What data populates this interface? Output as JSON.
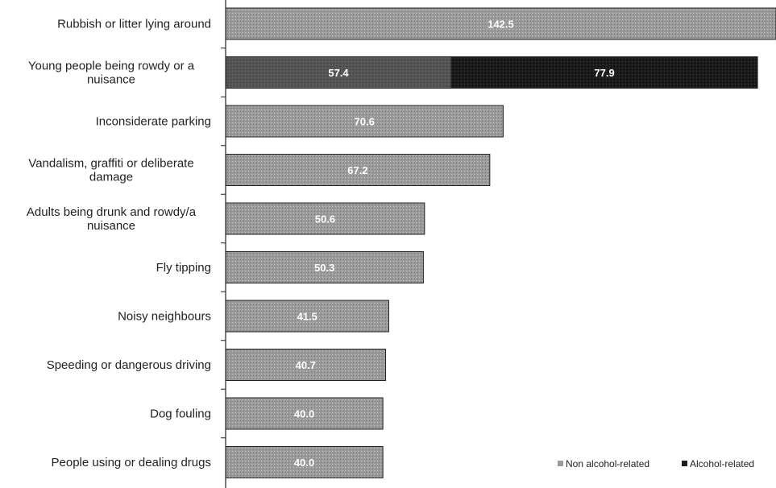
{
  "chart_data": {
    "type": "bar",
    "orientation": "horizontal",
    "stacked": true,
    "categories": [
      "Rubbish or litter lying around",
      "Young people being rowdy or a nuisance",
      "Inconsiderate parking",
      "Vandalism, graffiti or deliberate damage",
      "Adults being drunk and rowdy/a nuisance",
      "Fly tipping",
      "Noisy neighbours",
      "Speeding or dangerous driving",
      "Dog fouling",
      "People using or dealing drugs"
    ],
    "category_lines": [
      [
        "Rubbish or litter lying around"
      ],
      [
        "Young people being rowdy or a",
        "nuisance"
      ],
      [
        "Inconsiderate parking"
      ],
      [
        "Vandalism, graffiti or deliberate",
        "damage"
      ],
      [
        "Adults being drunk and rowdy/a",
        "nuisance"
      ],
      [
        "Fly tipping"
      ],
      [
        "Noisy neighbours"
      ],
      [
        "Speeding or dangerous driving"
      ],
      [
        "Dog fouling"
      ],
      [
        "People using or dealing drugs"
      ]
    ],
    "series": [
      {
        "name": "Non alcohol-related",
        "color": "#9a9a9a",
        "values": [
          142.5,
          57.4,
          70.6,
          67.2,
          50.6,
          50.3,
          41.5,
          40.7,
          40.0,
          40.0
        ],
        "labels": [
          "142.5",
          "57.4",
          "70.6",
          "67.2",
          "50.6",
          "50.3",
          "41.5",
          "40.7",
          "40.0",
          "40.0"
        ]
      },
      {
        "name": "Alcohol-related",
        "color": "#1c1c1c",
        "values": [
          0,
          77.9,
          0,
          0,
          0,
          0,
          0,
          0,
          0,
          0
        ],
        "labels": [
          "",
          "77.9",
          "",
          "",
          "",
          "",
          "",
          "",
          "",
          ""
        ]
      }
    ],
    "highlight_color": "#555555",
    "xlim": [
      0,
      140
    ],
    "grid": false,
    "legend_position": "bottom-right",
    "title": "",
    "xlabel": "",
    "ylabel": ""
  }
}
